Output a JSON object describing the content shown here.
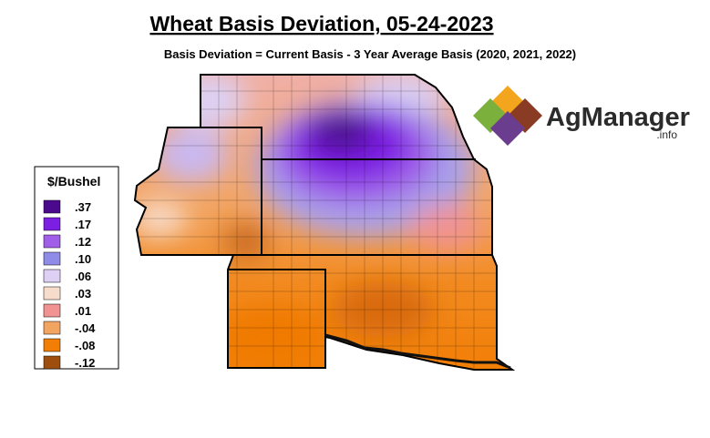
{
  "title": "Wheat Basis Deviation, 05-24-2023",
  "subtitle": "Basis Deviation = Current Basis - 3 Year Average Basis (2020, 2021, 2022)",
  "legend": {
    "title": "$/Bushel",
    "items": [
      {
        "label": ".37",
        "color": "#4b0a8e"
      },
      {
        "label": ".17",
        "color": "#7b1fe3"
      },
      {
        "label": ".12",
        "color": "#a15ee8"
      },
      {
        "label": ".10",
        "color": "#8e8ce6"
      },
      {
        "label": ".06",
        "color": "#ddd0f4"
      },
      {
        "label": ".03",
        "color": "#f8dccb"
      },
      {
        "label": ".01",
        "color": "#f09392"
      },
      {
        "label": "-.04",
        "color": "#f2a461"
      },
      {
        "label": "-.08",
        "color": "#f27e05"
      },
      {
        "label": "-.12",
        "color": "#9e4f0e"
      }
    ]
  },
  "logo": {
    "name": "AgManager",
    "suffix": ".info"
  }
}
